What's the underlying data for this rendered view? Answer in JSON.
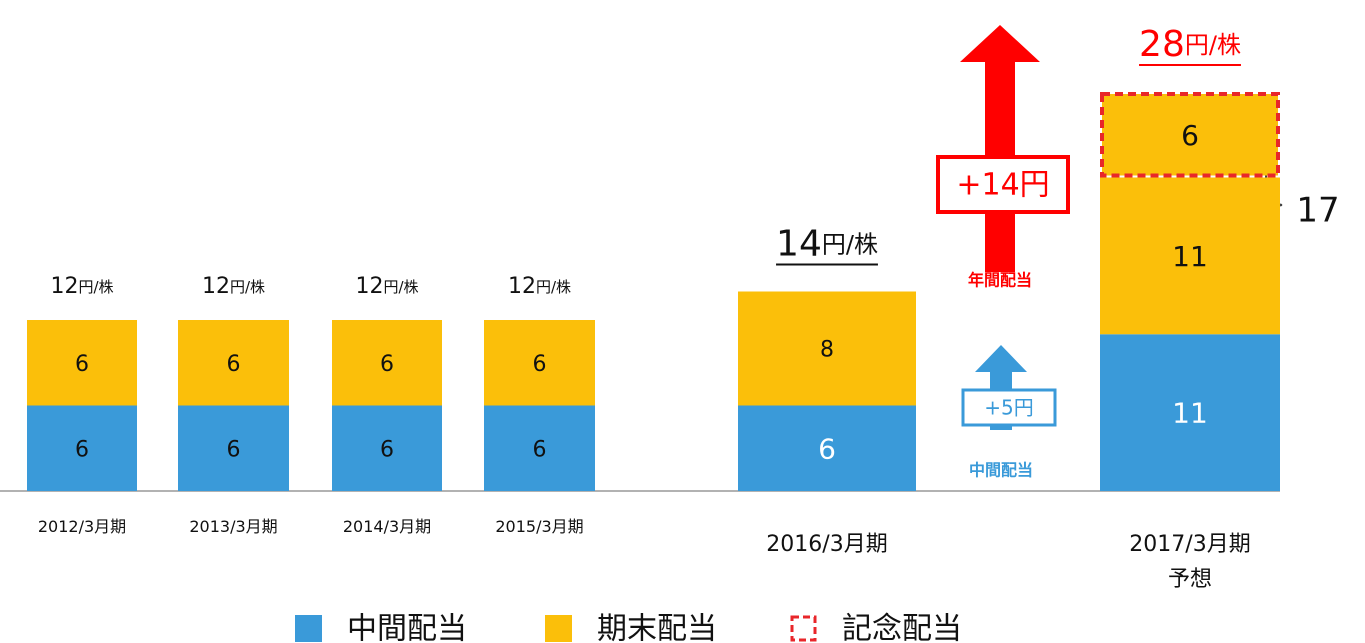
{
  "chart_data": {
    "type": "stacked-bar",
    "categories": [
      "2012/3月期",
      "2013/3月期",
      "2014/3月期",
      "2015/3月期",
      "2016/3月期",
      "2017/3月期 予想"
    ],
    "series": [
      {
        "name": "中間配当",
        "color": "#3a9ad9",
        "values": [
          6,
          6,
          6,
          6,
          6,
          11
        ]
      },
      {
        "name": "期末配当",
        "color": "#fbbf0a",
        "values": [
          6,
          6,
          6,
          6,
          8,
          11
        ]
      },
      {
        "name": "記念配当",
        "color": "#fbbf0a",
        "border_color": "#e8262a",
        "values": [
          null,
          null,
          null,
          null,
          null,
          6
        ]
      }
    ],
    "totals": [
      12,
      12,
      12,
      12,
      14,
      28
    ],
    "total_unit": "円/株",
    "annotations": {
      "annual": {
        "label": "+14円",
        "caption": "年間配当",
        "color": "#ff0000"
      },
      "interim": {
        "label": "+5円",
        "caption": "中間配当",
        "color": "#3a9ad9"
      },
      "bracket": "17"
    }
  }
}
